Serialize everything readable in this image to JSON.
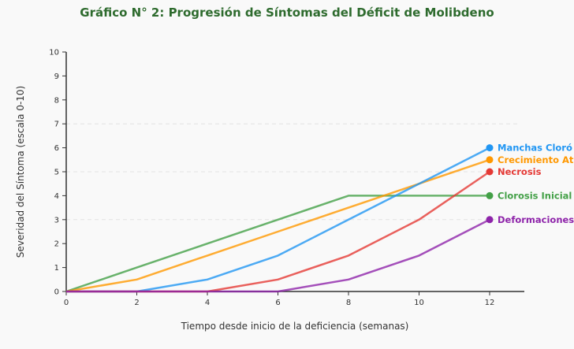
{
  "chart_data": {
    "type": "line",
    "title": "Gráfico N° 2: Progresión de Síntomas del Déficit de Molibdeno",
    "xlabel": "Tiempo desde inicio de la deficiencia (semanas)",
    "ylabel": "Severidad del Síntoma (escala 0-10)",
    "x": [
      0,
      2,
      4,
      6,
      8,
      10,
      12
    ],
    "xticks": [
      0,
      2,
      4,
      6,
      8,
      10,
      12
    ],
    "yticks": [
      0,
      1,
      2,
      3,
      4,
      5,
      6,
      7,
      8,
      9,
      10
    ],
    "xlim": [
      0,
      13
    ],
    "ylim": [
      0,
      10
    ],
    "grid": "dashed horizontal at 3, 5, 7",
    "legend": "end-of-line labels",
    "series": [
      {
        "name": "Manchas Cloró",
        "color": "#2196f3",
        "values": [
          0,
          0,
          0.5,
          1.5,
          3,
          4.5,
          6
        ]
      },
      {
        "name": "Crecimiento At",
        "color": "#ff9800",
        "values": [
          0,
          0.5,
          1.5,
          2.5,
          3.5,
          4.5,
          5.5
        ]
      },
      {
        "name": "Necrosis",
        "color": "#e53935",
        "values": [
          0,
          0,
          0,
          0.5,
          1.5,
          3,
          5
        ]
      },
      {
        "name": "Clorosis Inicial",
        "color": "#43a047",
        "values": [
          0,
          1,
          2,
          3,
          4,
          4,
          4
        ]
      },
      {
        "name": "Deformaciones",
        "color": "#8e24aa",
        "values": [
          0,
          0,
          0,
          0,
          0.5,
          1.5,
          3
        ]
      }
    ]
  }
}
